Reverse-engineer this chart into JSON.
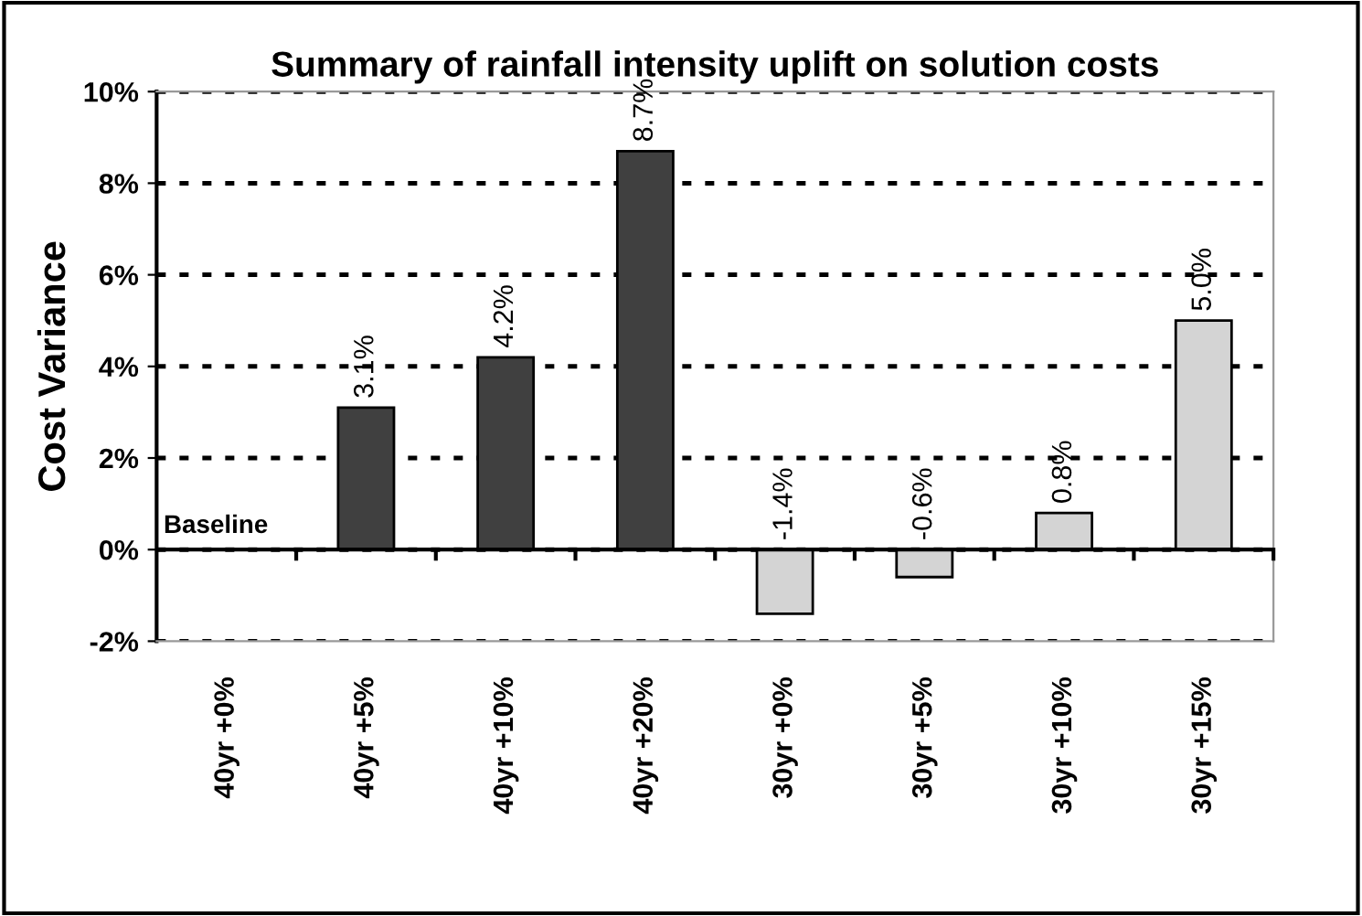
{
  "chart_data": {
    "type": "bar",
    "title": "Summary of rainfall intensity uplift on solution costs",
    "ylabel": "Cost Variance",
    "categories": [
      "40yr +0%",
      "40yr +5%",
      "40yr +10%",
      "40yr +20%",
      "30yr +0%",
      "30yr +5%",
      "30yr +10%",
      "30yr +15%"
    ],
    "values": [
      0,
      3.1,
      4.2,
      8.7,
      -1.4,
      -0.6,
      0.8,
      5.0
    ],
    "value_labels": [
      null,
      "3.1%",
      "4.2%",
      "8.7%",
      "-1.4%",
      "-0.6%",
      "0.8%",
      "5.0%"
    ],
    "colors": [
      "#404040",
      "#404040",
      "#404040",
      "#404040",
      "#d4d4d4",
      "#d4d4d4",
      "#d4d4d4",
      "#d4d4d4"
    ],
    "ylim": [
      -2,
      10
    ],
    "yticks": [
      {
        "value": -2,
        "label": "-2%"
      },
      {
        "value": 0,
        "label": "0%"
      },
      {
        "value": 2,
        "label": "2%"
      },
      {
        "value": 4,
        "label": "4%"
      },
      {
        "value": 6,
        "label": "6%"
      },
      {
        "value": 8,
        "label": "8%"
      },
      {
        "value": 10,
        "label": "10%"
      }
    ],
    "annotations": [
      {
        "text": "Baseline",
        "x": "40yr +0%",
        "y": 0
      }
    ],
    "grid": "y"
  }
}
